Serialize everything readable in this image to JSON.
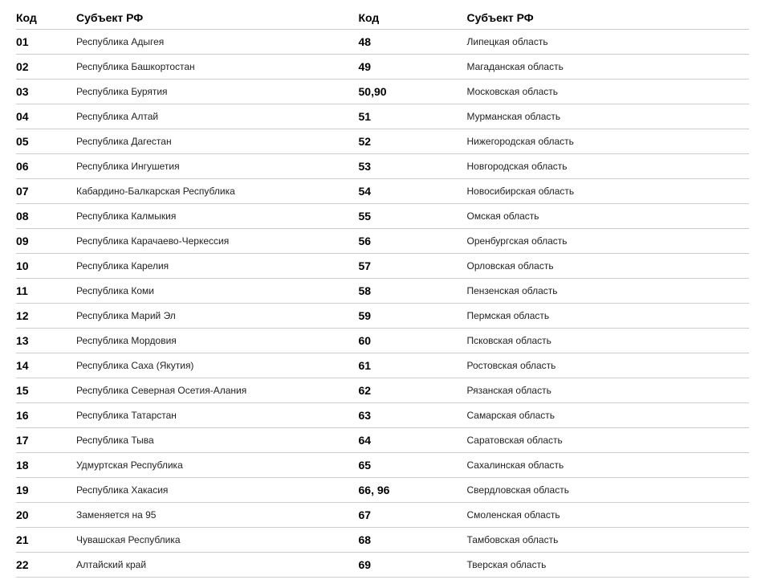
{
  "headers": {
    "code": "Код",
    "subject": "Субъект РФ"
  },
  "rows": [
    {
      "c1": "01",
      "s1": "Республика Адыгея",
      "c2": "48",
      "s2": "Липецкая область"
    },
    {
      "c1": "02",
      "s1": "Республика Башкортостан",
      "c2": "49",
      "s2": "Магаданская область"
    },
    {
      "c1": "03",
      "s1": "Республика Бурятия",
      "c2": "50,90",
      "s2": "Московская область"
    },
    {
      "c1": "04",
      "s1": "Республика Алтай",
      "c2": "51",
      "s2": "Мурманская область"
    },
    {
      "c1": "05",
      "s1": "Республика Дагестан",
      "c2": "52",
      "s2": "Нижегородская область"
    },
    {
      "c1": "06",
      "s1": "Республика Ингушетия",
      "c2": "53",
      "s2": "Новгородская область"
    },
    {
      "c1": "07",
      "s1": "Кабардино-Балкарская Республика",
      "c2": "54",
      "s2": "Новосибирская область"
    },
    {
      "c1": "08",
      "s1": "Республика Калмыкия",
      "c2": "55",
      "s2": "Омская область"
    },
    {
      "c1": "09",
      "s1": "Республика Карачаево-Черкессия",
      "c2": "56",
      "s2": "Оренбургская область"
    },
    {
      "c1": "10",
      "s1": "Республика Карелия",
      "c2": "57",
      "s2": "Орловская область"
    },
    {
      "c1": "11",
      "s1": "Республика Коми",
      "c2": "58",
      "s2": "Пензенская область"
    },
    {
      "c1": "12",
      "s1": "Республика Марий Эл",
      "c2": "59",
      "s2": "Пермская область"
    },
    {
      "c1": "13",
      "s1": "Республика Мордовия",
      "c2": "60",
      "s2": "Псковская область"
    },
    {
      "c1": "14",
      "s1": "Республика Саха (Якутия)",
      "c2": "61",
      "s2": "Ростовская область"
    },
    {
      "c1": "15",
      "s1": "Республика Северная Осетия-Алания",
      "c2": "62",
      "s2": "Рязанская область"
    },
    {
      "c1": "16",
      "s1": "Республика Татарстан",
      "c2": "63",
      "s2": "Самарская область"
    },
    {
      "c1": "17",
      "s1": "Республика Тыва",
      "c2": "64",
      "s2": "Саратовская область"
    },
    {
      "c1": "18",
      "s1": "Удмуртская Республика",
      "c2": "65",
      "s2": "Сахалинская область"
    },
    {
      "c1": "19",
      "s1": "Республика Хакасия",
      "c2": "66, 96",
      "s2": "Свердловская область"
    },
    {
      "c1": "20",
      "s1": "Заменяется на 95",
      "c2": "67",
      "s2": "Смоленская область"
    },
    {
      "c1": "21",
      "s1": "Чувашская Республика",
      "c2": "68",
      "s2": "Тамбовская область"
    },
    {
      "c1": "22",
      "s1": "Алтайский край",
      "c2": "69",
      "s2": "Тверская область"
    }
  ],
  "styling": {
    "header_fontsize": 14,
    "header_fontweight": "bold",
    "code_fontsize": 14,
    "code_fontweight": "bold",
    "subject_fontsize": 12,
    "text_color": "#000000",
    "subject_color": "#222222",
    "border_color": "#cccccc",
    "background_color": "#ffffff",
    "row_padding": 7,
    "col_code_width": 75,
    "col_code2_width": 135
  }
}
